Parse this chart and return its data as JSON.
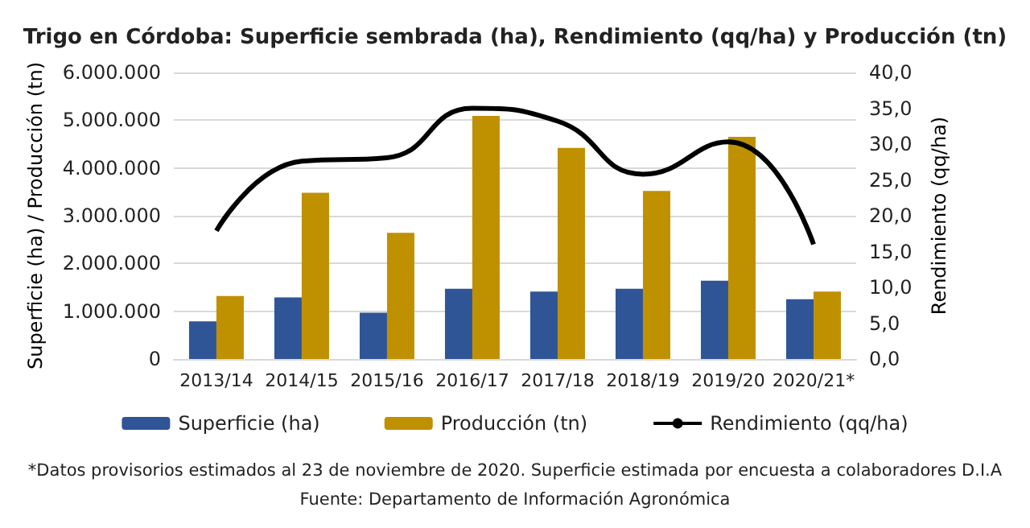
{
  "chart_data": {
    "type": "bar",
    "title": "Trigo en Córdoba: Superficie sembrada (ha), Rendimiento (qq/ha) y Producción (tn)",
    "categories": [
      "2013/14",
      "2014/15",
      "2015/16",
      "2016/17",
      "2017/18",
      "2018/19",
      "2019/20",
      "2020/21*"
    ],
    "series": [
      {
        "name": "Superficie (ha)",
        "color": "#2f5597",
        "values": [
          790000,
          1290000,
          970000,
          1470000,
          1410000,
          1470000,
          1640000,
          1250000
        ]
      },
      {
        "name": "Producción (tn)",
        "color": "#bf9000",
        "values": [
          1320000,
          3480000,
          2640000,
          5090000,
          4420000,
          3520000,
          4650000,
          1410000
        ]
      },
      {
        "name": "Rendimiento (qq/ha)",
        "type": "line",
        "axis": "y2",
        "color": "#000000",
        "values": [
          17.9,
          27.6,
          28.1,
          35.0,
          33.2,
          25.8,
          30.3,
          16.0
        ]
      }
    ],
    "ylabel": "Superficie (ha) / Producción (tn)",
    "y2label": "Rendimiento (qq/ha)",
    "ylim": [
      0,
      6000000
    ],
    "yticks": [
      {
        "value": 0,
        "label": "0"
      },
      {
        "value": 1000000,
        "label": "1.000.000"
      },
      {
        "value": 2000000,
        "label": "2.000.000"
      },
      {
        "value": 3000000,
        "label": "3.000.000"
      },
      {
        "value": 4000000,
        "label": "4.000.000"
      },
      {
        "value": 5000000,
        "label": "5.000.000"
      },
      {
        "value": 6000000,
        "label": "6.000.000"
      }
    ],
    "y2lim": [
      0,
      40
    ],
    "y2ticks": [
      {
        "value": 0,
        "label": "0,0"
      },
      {
        "value": 5,
        "label": "5,0"
      },
      {
        "value": 10,
        "label": "10,0"
      },
      {
        "value": 15,
        "label": "15,0"
      },
      {
        "value": 20,
        "label": "20,0"
      },
      {
        "value": 25,
        "label": "25,0"
      },
      {
        "value": 30,
        "label": "30,0"
      },
      {
        "value": 35,
        "label": "35,0"
      },
      {
        "value": 40,
        "label": "40,0"
      }
    ],
    "grid": "y",
    "legend": "bottom",
    "marker": "none",
    "annotations": [
      "*Datos provisorios estimados al 23 de noviembre de 2020. Superficie estimada por encuesta a colaboradores D.I.A",
      "Fuente: Departamento de Información Agronómica"
    ]
  }
}
